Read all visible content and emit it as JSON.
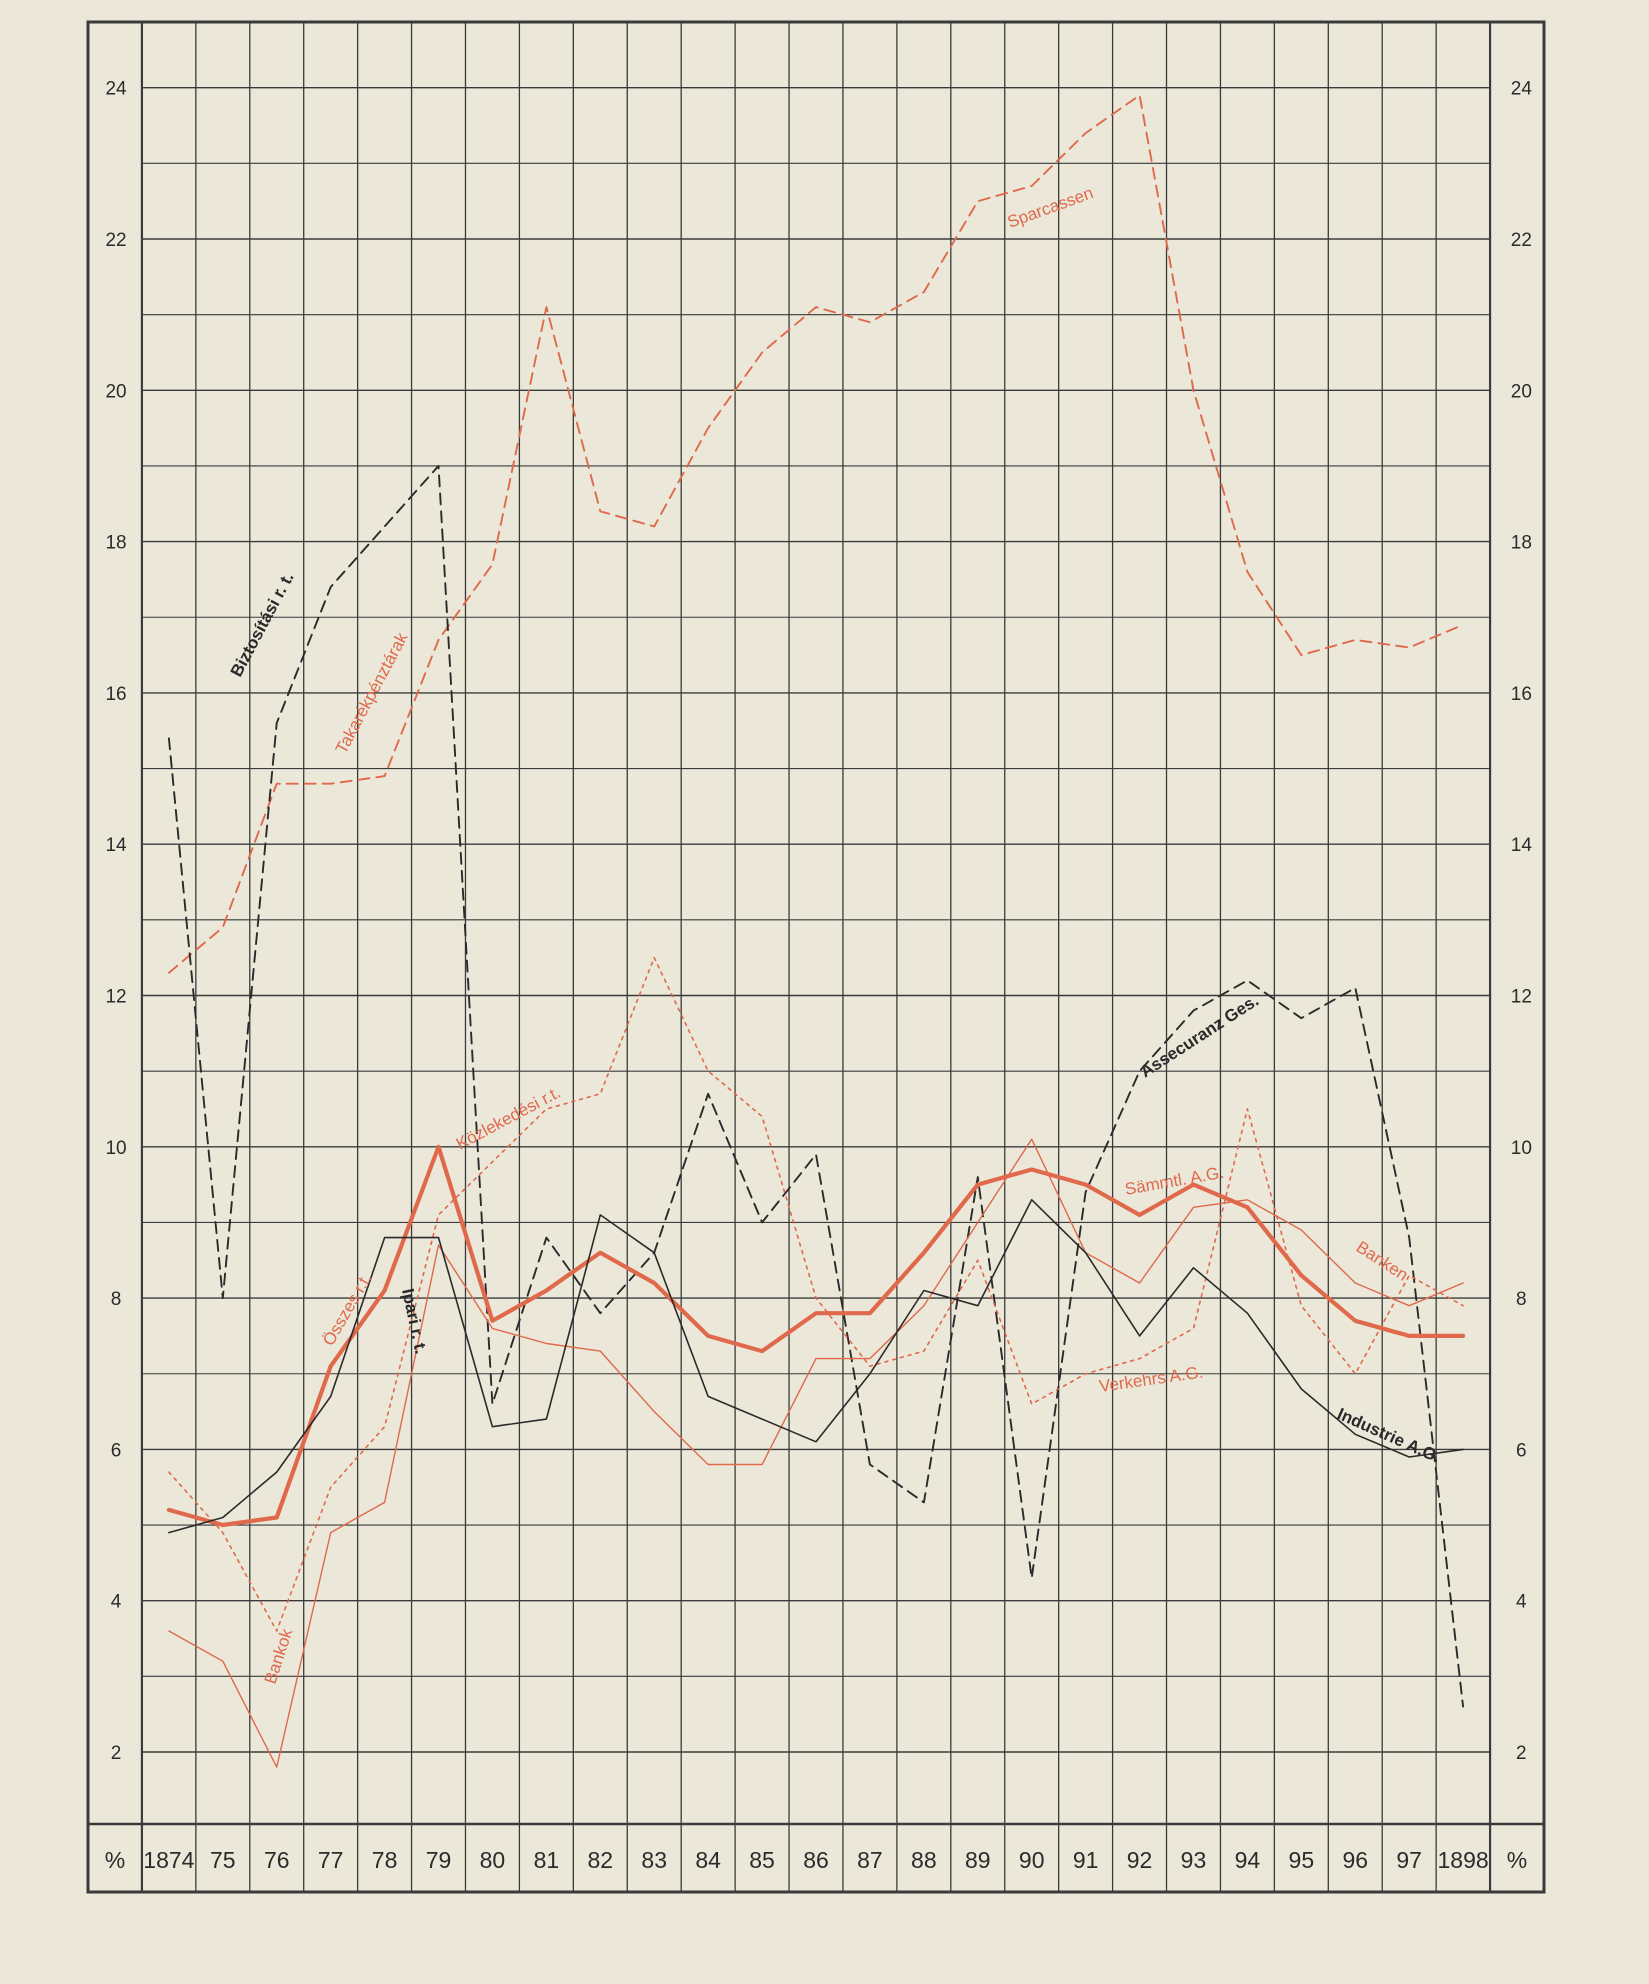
{
  "chart_data": {
    "type": "line",
    "title": "",
    "xlabel": "",
    "ylabel": "%",
    "ylim": [
      0,
      25
    ],
    "y_ticks": [
      2,
      4,
      6,
      8,
      10,
      12,
      14,
      16,
      18,
      20,
      22,
      24
    ],
    "axis_unit_label": "%",
    "grid": true,
    "x_labels": [
      "1874",
      "75",
      "76",
      "77",
      "78",
      "79",
      "80",
      "81",
      "82",
      "83",
      "84",
      "85",
      "86",
      "87",
      "88",
      "89",
      "90",
      "91",
      "92",
      "93",
      "94",
      "95",
      "96",
      "97",
      "1898"
    ],
    "colors": {
      "red": "#e0694c",
      "black": "#2a2a2a",
      "grid": "#3a3a3a",
      "paper": "#ebe8d9"
    },
    "series": [
      {
        "name": "Takarékpénztárak / Sparcassen",
        "labels": [
          "Takarékpénztárak",
          "Sparcassen"
        ],
        "color": "#e0694c",
        "style": "dashed",
        "weight": "normal",
        "values": [
          12.3,
          12.9,
          14.8,
          14.8,
          14.9,
          16.7,
          17.7,
          21.1,
          18.4,
          18.2,
          19.5,
          20.5,
          21.1,
          20.9,
          21.3,
          22.5,
          22.7,
          23.4,
          23.9,
          20.0,
          17.6,
          16.5,
          16.7,
          16.6,
          16.9
        ]
      },
      {
        "name": "Biztosítási r.t. / Assecuranz Ges.",
        "labels": [
          "Biztosítási r. t.",
          "Assecuranz Ges."
        ],
        "color": "#2a2a2a",
        "style": "dashed",
        "weight": "normal",
        "values": [
          15.4,
          8.0,
          15.6,
          17.4,
          18.2,
          19.0,
          6.6,
          8.8,
          7.8,
          8.6,
          10.7,
          9.0,
          9.9,
          5.8,
          5.3,
          9.6,
          4.3,
          9.4,
          11.0,
          11.8,
          12.2,
          11.7,
          12.1,
          8.8,
          2.6
        ]
      },
      {
        "name": "Közlekedési r.t. / Verkehrs A.G.",
        "labels": [
          "Közlekedési r.t.",
          "Verkehrs A.G."
        ],
        "color": "#e0694c",
        "style": "dotted",
        "weight": "normal",
        "values": [
          5.7,
          4.9,
          3.6,
          5.5,
          6.3,
          9.1,
          9.8,
          10.5,
          10.7,
          12.5,
          11.0,
          10.4,
          8.0,
          7.1,
          7.3,
          8.5,
          6.6,
          7.0,
          7.2,
          7.6,
          10.5,
          7.9,
          7.0,
          8.3,
          7.9
        ]
      },
      {
        "name": "Bankok / Banken",
        "labels": [
          "Bankok",
          "Banken"
        ],
        "color": "#e0694c",
        "style": "solid",
        "weight": "thin",
        "values": [
          3.6,
          3.2,
          1.8,
          4.9,
          5.3,
          8.7,
          7.6,
          7.4,
          7.3,
          6.5,
          5.8,
          5.8,
          7.2,
          7.2,
          7.9,
          9.0,
          10.1,
          8.6,
          8.2,
          9.2,
          9.3,
          8.9,
          8.2,
          7.9,
          8.2
        ]
      },
      {
        "name": "Összes r.t. / Sämmtl. A.G.",
        "labels": [
          "Összes r.t.",
          "Sämmtl. A.G."
        ],
        "color": "#e0694c",
        "style": "solid",
        "weight": "thick",
        "values": [
          5.2,
          5.0,
          5.1,
          7.1,
          8.1,
          10.0,
          7.7,
          8.1,
          8.6,
          8.2,
          7.5,
          7.3,
          7.8,
          7.8,
          8.6,
          9.5,
          9.7,
          9.5,
          9.1,
          9.5,
          9.2,
          8.3,
          7.7,
          7.5,
          7.5
        ]
      },
      {
        "name": "Ipari r.t. / Industrie A.G.",
        "labels": [
          "Ipari r. t.",
          "Industrie A.G."
        ],
        "color": "#2a2a2a",
        "style": "solid",
        "weight": "normal",
        "values": [
          4.9,
          5.1,
          5.7,
          6.7,
          8.8,
          8.8,
          6.3,
          6.4,
          9.1,
          8.6,
          6.7,
          6.4,
          6.1,
          7.0,
          8.1,
          7.9,
          9.3,
          8.6,
          7.5,
          8.4,
          7.8,
          6.8,
          6.2,
          5.9,
          6.0
        ]
      }
    ]
  }
}
